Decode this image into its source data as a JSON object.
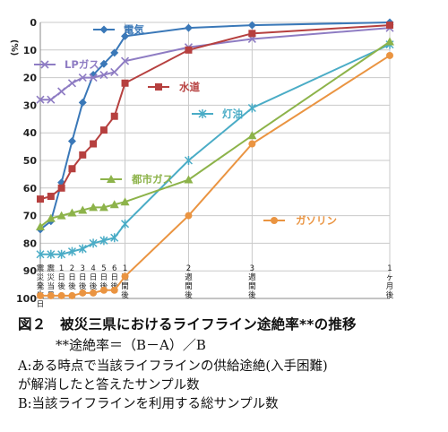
{
  "chart_data": {
    "type": "line",
    "title": "",
    "ylabel": "(%)",
    "ylim": [
      0,
      100
    ],
    "y_inverted": true,
    "y_ticks": [
      "0",
      "10",
      "20",
      "30",
      "40",
      "50",
      "60",
      "70",
      "80",
      "90",
      "100"
    ],
    "grid": true,
    "x_ticks": [
      {
        "t": 0,
        "label": "震災発生日"
      },
      {
        "t": 1,
        "label": "震災当日"
      },
      {
        "t": 2,
        "label": "1日後"
      },
      {
        "t": 3,
        "label": "2日後"
      },
      {
        "t": 4,
        "label": "3日後"
      },
      {
        "t": 5,
        "label": "4日後"
      },
      {
        "t": 6,
        "label": "5日後"
      },
      {
        "t": 7,
        "label": "6日後"
      },
      {
        "t": 8,
        "label": "1週間後"
      },
      {
        "t": 14,
        "label": "2週間後"
      },
      {
        "t": 20,
        "label": "3週間後"
      },
      {
        "t": 33,
        "label": "1ヶ月後"
      }
    ],
    "series": [
      {
        "name": "電気",
        "color": "#3a78b8",
        "marker": "diamond",
        "x": [
          0,
          1,
          2,
          3,
          4,
          5,
          6,
          7,
          8,
          14,
          20,
          33
        ],
        "y": [
          75,
          72,
          58,
          43,
          29,
          19,
          15,
          11,
          5,
          2,
          1,
          0
        ]
      },
      {
        "name": "LPガス",
        "color": "#8e7cc3",
        "marker": "cross",
        "x": [
          0,
          1,
          2,
          3,
          4,
          5,
          6,
          7,
          8,
          14,
          20,
          33
        ],
        "y": [
          28,
          28,
          25,
          22,
          20,
          20,
          19,
          18,
          14,
          9,
          6,
          2
        ]
      },
      {
        "name": "水道",
        "color": "#b6403f",
        "marker": "square",
        "x": [
          0,
          1,
          2,
          3,
          4,
          5,
          6,
          7,
          8,
          14,
          20,
          33
        ],
        "y": [
          64,
          63,
          60,
          53,
          48,
          44,
          39,
          34,
          22,
          10,
          4,
          1
        ]
      },
      {
        "name": "灯油",
        "color": "#4aacc6",
        "marker": "star",
        "x": [
          0,
          1,
          2,
          3,
          4,
          5,
          6,
          7,
          8,
          14,
          20,
          33
        ],
        "y": [
          84,
          84,
          84,
          83,
          82,
          80,
          79,
          78,
          73,
          50,
          31,
          8
        ]
      },
      {
        "name": "都市ガス",
        "color": "#8db34a",
        "marker": "triangle",
        "x": [
          0,
          1,
          2,
          3,
          4,
          5,
          6,
          7,
          8,
          14,
          20,
          33
        ],
        "y": [
          74,
          71,
          70,
          69,
          68,
          67,
          67,
          66,
          65,
          57,
          41,
          7
        ]
      },
      {
        "name": "ガソリン",
        "color": "#ea9441",
        "marker": "circle",
        "x": [
          0,
          1,
          2,
          3,
          4,
          5,
          6,
          7,
          8,
          14,
          20,
          33
        ],
        "y": [
          99,
          99,
          99,
          99,
          98,
          98,
          97,
          97,
          92,
          70,
          44,
          12
        ]
      }
    ]
  },
  "caption": {
    "title": "図２　被災三県におけるライフライン途絶率**の推移",
    "note": "**途絶率＝（B－A）／B",
    "def_a": "A:ある時点で当該ライフラインの供給途絶(入手困難)",
    "def_a2": "が解消したと答えたサンプル数",
    "def_b": "B:当該ライフラインを利用する総サンプル数"
  }
}
